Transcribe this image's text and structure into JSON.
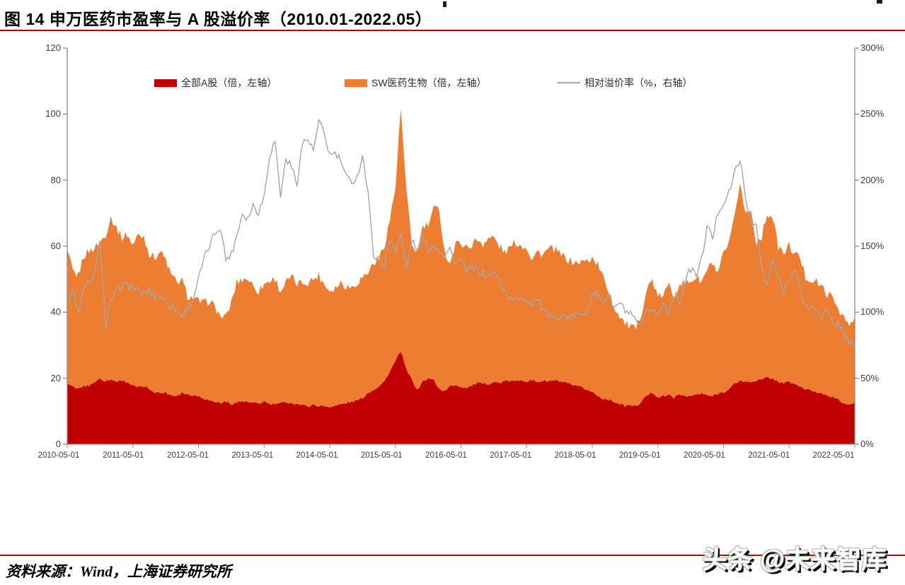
{
  "page": {
    "title": "图 14 申万医药市盈率与 A 股溢价率（2010.01-2022.05）",
    "source_note": "资料来源：Wind，上海证券研究所",
    "watermark": "头条 @未来智库"
  },
  "colors": {
    "accent_red": "#c00000",
    "area_a_share": "#c00000",
    "area_pharma": "#ed7d31",
    "line_premium": "#a6a6a6",
    "axis_line": "#8c8c8c",
    "axis_text": "#3d3d3d"
  },
  "chart_data": {
    "type": "area",
    "title": "申万医药市盈率与A股溢价率",
    "x_unit": "month",
    "x_start": "2010-05",
    "x_end": "2022-05",
    "grid": false,
    "legend_position": "top",
    "x_tick_labels": [
      "2010-05-01",
      "2011-05-01",
      "2012-05-01",
      "2013-05-01",
      "2014-05-01",
      "2015-05-01",
      "2016-05-01",
      "2017-05-01",
      "2018-05-01",
      "2019-05-01",
      "2020-05-01",
      "2021-05-01",
      "2022-05-01"
    ],
    "left_axis": {
      "min": 0,
      "max": 120,
      "ticks": [
        0,
        20,
        40,
        60,
        80,
        100,
        120
      ]
    },
    "right_axis": {
      "min": 0,
      "max": 300,
      "ticks": [
        "0%",
        "50%",
        "100%",
        "150%",
        "200%",
        "250%",
        "300%"
      ]
    },
    "legend": [
      {
        "label": "全部A股（倍，左轴）",
        "swatch": "area",
        "color": "#c00000"
      },
      {
        "label": "SW医药生物（倍，左轴）",
        "swatch": "area",
        "color": "#ed7d31"
      },
      {
        "label": "相对溢价率（%，右轴）",
        "swatch": "line",
        "color": "#a6a6a6"
      }
    ],
    "series": [
      {
        "name": "SW医药生物（倍，左轴）",
        "axis": "left",
        "type": "area",
        "color": "#ed7d31",
        "values": [
          58.7,
          52.5,
          51.0,
          57.0,
          58.5,
          59.5,
          61.0,
          63.5,
          68.8,
          65.5,
          62.6,
          63.6,
          60.4,
          63.4,
          63.0,
          57.7,
          56.6,
          58.4,
          55.9,
          51.2,
          49.1,
          49.5,
          44.9,
          44.2,
          43.3,
          42.7,
          43.5,
          41.5,
          38.8,
          38.4,
          43.0,
          49.0,
          50.0,
          50.2,
          48.0,
          46.3,
          48.5,
          49.5,
          50.2,
          46.3,
          49.0,
          50.6,
          48.5,
          49.0,
          49.0,
          50.0,
          51.2,
          48.5,
          46.6,
          47.5,
          49.0,
          48.0,
          47.6,
          49.0,
          50.6,
          52.0,
          54.9,
          56.2,
          60.4,
          68.0,
          77.6,
          101.5,
          76.9,
          60.4,
          58.3,
          65.8,
          66.2,
          71.1,
          71.5,
          58.3,
          54.9,
          60.4,
          61.3,
          59.5,
          60.5,
          61.9,
          60.8,
          62.3,
          62.6,
          60.0,
          58.1,
          59.5,
          61.3,
          60.0,
          59.8,
          56.2,
          58.3,
          57.5,
          59.0,
          59.1,
          57.7,
          56.5,
          55.5,
          54.9,
          55.2,
          55.5,
          56.5,
          54.4,
          50.5,
          46.5,
          41.2,
          39.1,
          36.5,
          35.5,
          34.6,
          40.0,
          47.0,
          49.8,
          44.2,
          45.5,
          48.0,
          44.9,
          49.1,
          48.5,
          49.5,
          50.6,
          49.1,
          52.7,
          54.9,
          51.2,
          57.7,
          60.4,
          68.3,
          79.5,
          69.8,
          70.9,
          61.3,
          63.0,
          70.0,
          68.7,
          59.8,
          57.7,
          60.2,
          57.7,
          56.6,
          50.6,
          49.8,
          49.1,
          47.5,
          45.5,
          44.2,
          41.2,
          38.4,
          35.7,
          38.4
        ]
      },
      {
        "name": "全部A股（倍，左轴）",
        "axis": "left",
        "type": "area",
        "color": "#c00000",
        "values": [
          18.5,
          17.3,
          16.8,
          17.5,
          17.8,
          18.8,
          19.8,
          19.2,
          19.5,
          19.0,
          19.3,
          18.8,
          17.7,
          17.2,
          17.5,
          16.7,
          15.8,
          15.5,
          15.6,
          14.8,
          14.7,
          15.6,
          15.0,
          14.9,
          14.5,
          13.9,
          13.2,
          12.8,
          12.5,
          12.8,
          12.2,
          12.6,
          13.0,
          12.7,
          12.4,
          12.2,
          13.0,
          12.0,
          12.2,
          12.3,
          12.8,
          12.4,
          12.2,
          11.8,
          11.5,
          11.9,
          11.6,
          11.5,
          11.3,
          11.6,
          12.0,
          12.4,
          12.8,
          13.2,
          14.0,
          15.5,
          16.5,
          17.5,
          19.0,
          22.0,
          25.0,
          28.2,
          22.5,
          19.5,
          16.3,
          19.0,
          19.8,
          19.5,
          16.7,
          16.0,
          17.5,
          18.0,
          17.3,
          17.1,
          17.7,
          18.5,
          18.2,
          18.3,
          18.8,
          18.5,
          19.0,
          19.2,
          18.9,
          19.6,
          19.0,
          19.3,
          18.9,
          19.2,
          19.0,
          19.3,
          19.0,
          18.6,
          18.0,
          17.5,
          17.2,
          16.5,
          15.8,
          14.5,
          13.8,
          13.5,
          12.9,
          12.2,
          11.5,
          11.8,
          11.4,
          12.8,
          14.8,
          15.6,
          14.3,
          14.5,
          14.8,
          14.2,
          14.9,
          14.7,
          14.5,
          15.0,
          15.2,
          14.8,
          14.5,
          15.3,
          15.8,
          16.5,
          18.3,
          19.2,
          18.8,
          18.9,
          19.3,
          19.5,
          20.2,
          19.8,
          18.9,
          18.5,
          18.8,
          18.2,
          17.4,
          16.6,
          16.2,
          15.7,
          15.4,
          14.9,
          14.2,
          13.4,
          12.4,
          11.7,
          12.8
        ]
      },
      {
        "name": "相对溢价率（%，右轴）",
        "axis": "right",
        "type": "line",
        "color": "#a6a6a6",
        "values": [
          108,
          117,
          99,
          117,
          123,
          128,
          157,
          89,
          108,
          116,
          121,
          120,
          119,
          116,
          114,
          116,
          112,
          113,
          108,
          105,
          101,
          97,
          103,
          110,
          125,
          140,
          150,
          160,
          165,
          140,
          144,
          158,
          175,
          171,
          181,
          176,
          188,
          219,
          230,
          188,
          217,
          210,
          198,
          228,
          231,
          222,
          244,
          235,
          219,
          220,
          215,
          202,
          199,
          202,
          219,
          190,
          144,
          140,
          135,
          155,
          148,
          159,
          132,
          155,
          146,
          157,
          148,
          150,
          148,
          143,
          148,
          137,
          139,
          132,
          133,
          132,
          129,
          127,
          130,
          124,
          116,
          110,
          109,
          112,
          109,
          107,
          110,
          101,
          96,
          100,
          94,
          98,
          94,
          100,
          96,
          101,
          116,
          112,
          108,
          114,
          103,
          107,
          101,
          98,
          92,
          89,
          100,
          103,
          98,
          107,
          101,
          114,
          108,
          123,
          133,
          128,
          140,
          165,
          156,
          176,
          183,
          190,
          205,
          217,
          186,
          170,
          165,
          133,
          119,
          140,
          126,
          116,
          126,
          131,
          117,
          105,
          103,
          103,
          97,
          101,
          90,
          92,
          85,
          78,
          72
        ]
      }
    ]
  }
}
